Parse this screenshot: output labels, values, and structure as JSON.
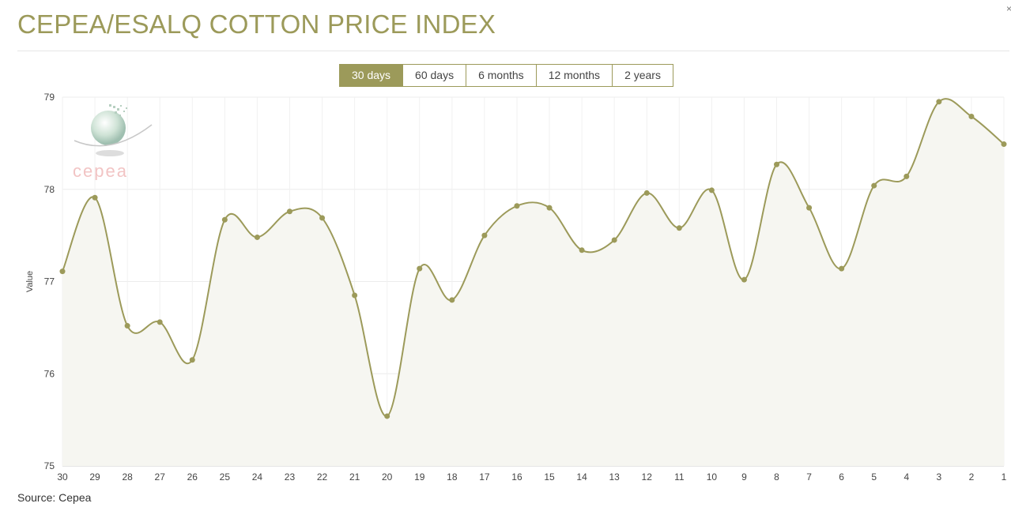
{
  "page": {
    "title": "CEPEA/ESALQ COTTON PRICE INDEX",
    "source": "Source: Cepea",
    "close_glyph": "×"
  },
  "range_buttons": [
    {
      "label": "30 days",
      "active": true
    },
    {
      "label": "60 days",
      "active": false
    },
    {
      "label": "6 months",
      "active": false
    },
    {
      "label": "12 months",
      "active": false
    },
    {
      "label": "2 years",
      "active": false
    }
  ],
  "logo": {
    "text": "cepea"
  },
  "colors": {
    "accent": "#9c9a5a",
    "area_fill": "#f6f6f1",
    "grid": "#ececec"
  },
  "chart_data": {
    "type": "area",
    "title": "",
    "xlabel": "",
    "ylabel": "Value",
    "ylim": [
      75,
      79
    ],
    "yticks": [
      75,
      76,
      77,
      78,
      79
    ],
    "grid": true,
    "legend": "none",
    "categories": [
      "30",
      "29",
      "28",
      "27",
      "26",
      "25",
      "24",
      "23",
      "22",
      "21",
      "20",
      "19",
      "18",
      "17",
      "16",
      "15",
      "14",
      "13",
      "12",
      "11",
      "10",
      "9",
      "8",
      "7",
      "6",
      "5",
      "4",
      "3",
      "2",
      "1"
    ],
    "series": [
      {
        "name": "",
        "values": [
          77.11,
          77.91,
          76.52,
          76.56,
          76.15,
          77.67,
          77.48,
          77.76,
          77.69,
          76.85,
          75.54,
          77.14,
          76.8,
          77.5,
          77.82,
          77.8,
          77.34,
          77.45,
          77.96,
          77.58,
          77.99,
          77.02,
          78.27,
          77.8,
          77.14,
          78.04,
          78.14,
          78.95,
          78.79,
          78.49
        ]
      }
    ]
  }
}
